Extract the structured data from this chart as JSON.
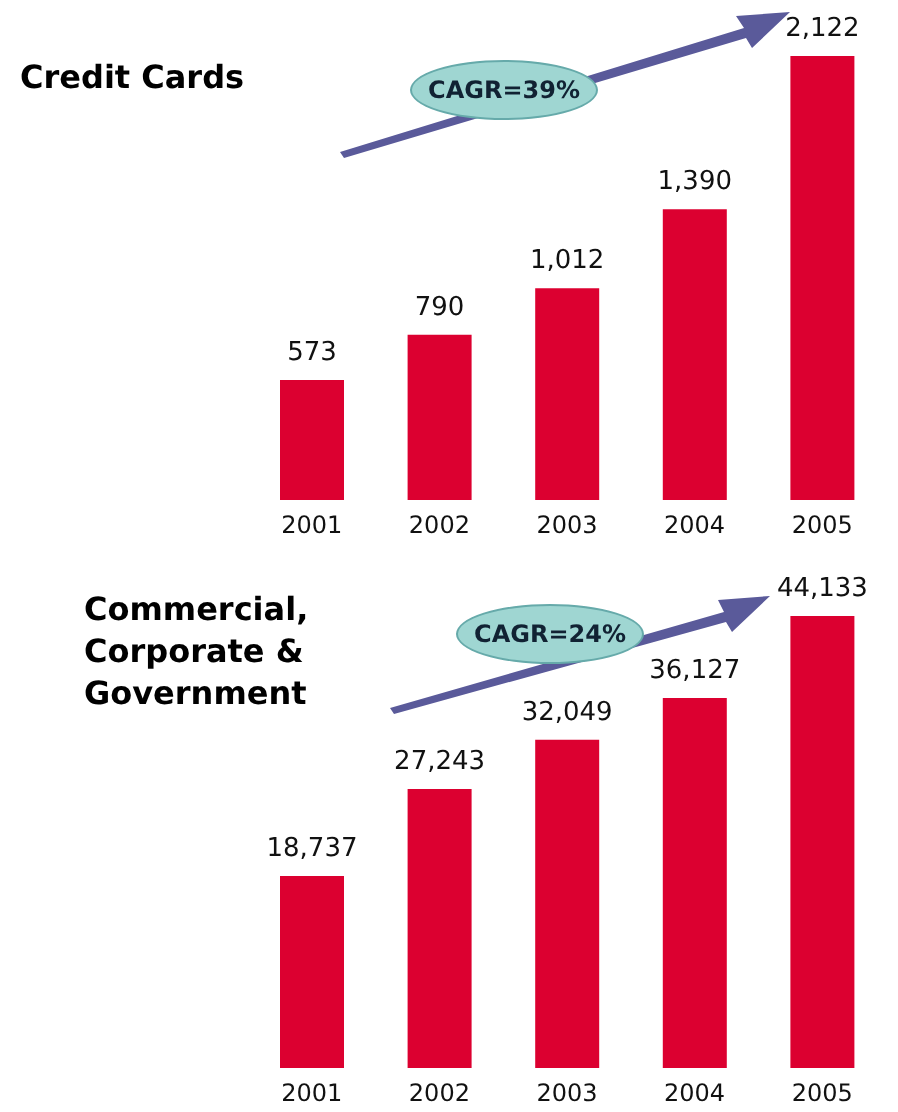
{
  "chart_data": [
    {
      "type": "bar",
      "title": "Credit Cards",
      "categories": [
        "2001",
        "2002",
        "2003",
        "2004",
        "2005"
      ],
      "values": [
        573,
        790,
        1012,
        1390,
        2122
      ],
      "value_labels": [
        "573",
        "790",
        "1,012",
        "1,390",
        "2,122"
      ],
      "color": "#dc0030",
      "annotations": [
        "CAGR=39%"
      ]
    },
    {
      "type": "bar",
      "title": "Commercial, Corporate & Government",
      "categories": [
        "2001",
        "2002",
        "2003",
        "2004",
        "2005"
      ],
      "values": [
        18737,
        27243,
        32049,
        36127,
        44133
      ],
      "value_labels": [
        "18,737",
        "27,243",
        "32,049",
        "36,127",
        "44,133"
      ],
      "color": "#dc0030",
      "annotations": [
        "CAGR=24%"
      ]
    }
  ]
}
